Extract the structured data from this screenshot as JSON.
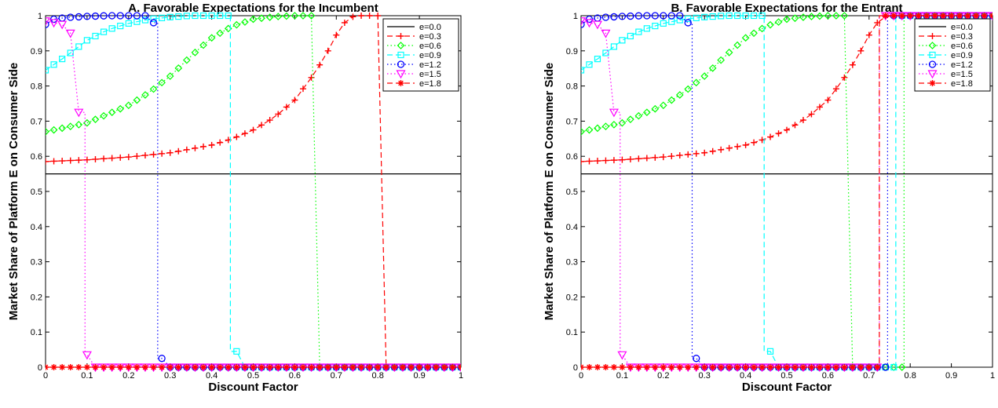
{
  "colors": {
    "e00": "#000000",
    "e03": "#ff0000",
    "e06": "#00ff00",
    "e09": "#00ffff",
    "e12": "#0000ff",
    "e15": "#ff00ff",
    "e18": "#ff0000"
  },
  "chart_data": [
    {
      "type": "line",
      "title": "A. Favorable Expectations for the Incumbent",
      "xlabel": "Discount Factor",
      "ylabel": "Market Share of Platform E on Consumer Side",
      "xlim": [
        0,
        1
      ],
      "ylim": [
        0,
        1
      ],
      "xticks": [
        "0",
        "0.1",
        "0.2",
        "0.3",
        "0.4",
        "0.5",
        "0.6",
        "0.7",
        "0.8",
        "0.9",
        "1"
      ],
      "yticks": [
        "0",
        "0.1",
        "0.2",
        "0.3",
        "0.4",
        "0.5",
        "0.6",
        "0.7",
        "0.8",
        "0.9",
        "1"
      ],
      "grid": false,
      "legend": "top-right",
      "x_step": 0.02,
      "series": [
        {
          "name": "e=0.0",
          "style": "solid",
          "marker": "none",
          "color_key": "e00",
          "constant": 0.55
        },
        {
          "name": "e=0.3",
          "style": "dashed",
          "marker": "plus",
          "color_key": "e03",
          "high": [
            [
              0,
              0.585
            ],
            [
              0.1,
              0.59
            ],
            [
              0.2,
              0.598
            ],
            [
              0.3,
              0.61
            ],
            [
              0.4,
              0.632
            ],
            [
              0.45,
              0.65
            ],
            [
              0.5,
              0.675
            ],
            [
              0.55,
              0.71
            ],
            [
              0.6,
              0.76
            ],
            [
              0.65,
              0.84
            ],
            [
              0.68,
              0.9
            ],
            [
              0.7,
              0.945
            ],
            [
              0.72,
              0.98
            ],
            [
              0.74,
              0.997
            ],
            [
              0.76,
              1.0
            ],
            [
              0.8,
              1.0
            ]
          ],
          "jump": 0.82,
          "low": 0.0
        },
        {
          "name": "e=0.6",
          "style": "dotted",
          "marker": "diamond",
          "color_key": "e06",
          "high": [
            [
              0,
              0.67
            ],
            [
              0.1,
              0.695
            ],
            [
              0.2,
              0.745
            ],
            [
              0.25,
              0.782
            ],
            [
              0.3,
              0.828
            ],
            [
              0.35,
              0.885
            ],
            [
              0.4,
              0.937
            ],
            [
              0.45,
              0.97
            ],
            [
              0.5,
              0.99
            ],
            [
              0.55,
              0.997
            ],
            [
              0.6,
              1.0
            ],
            [
              0.64,
              1.0
            ]
          ],
          "jump": 0.66,
          "low": 0.0
        },
        {
          "name": "e=0.9",
          "style": "dashed",
          "marker": "square",
          "color_key": "e09",
          "high": [
            [
              0,
              0.845
            ],
            [
              0.05,
              0.885
            ],
            [
              0.1,
              0.93
            ],
            [
              0.15,
              0.96
            ],
            [
              0.2,
              0.978
            ],
            [
              0.25,
              0.99
            ],
            [
              0.3,
              0.996
            ],
            [
              0.35,
              1.0
            ],
            [
              0.44,
              1.0
            ]
          ],
          "jump": 0.445,
          "low_points": [
            [
              0.46,
              0.045
            ],
            [
              0.48,
              0.0
            ]
          ],
          "low": 0.0
        },
        {
          "name": "e=1.2",
          "style": "dotted",
          "marker": "circle",
          "color_key": "e12",
          "high": [
            [
              0,
              0.975
            ],
            [
              0.02,
              0.99
            ],
            [
              0.05,
              0.995
            ],
            [
              0.1,
              0.998
            ],
            [
              0.15,
              1.0
            ],
            [
              0.24,
              1.0
            ],
            [
              0.26,
              0.98
            ]
          ],
          "jump": 0.27,
          "low_points": [
            [
              0.28,
              0.025
            ],
            [
              0.3,
              0.0
            ]
          ],
          "low": 0.0
        },
        {
          "name": "e=1.5",
          "style": "dotted",
          "marker": "triangle-down",
          "color_key": "e15",
          "high": [
            [
              0,
              0.985
            ],
            [
              0.02,
              0.98
            ],
            [
              0.04,
              0.975
            ],
            [
              0.06,
              0.95
            ],
            [
              0.08,
              0.725
            ]
          ],
          "jump": 0.095,
          "low_points": [
            [
              0.1,
              0.035
            ],
            [
              0.12,
              0.0
            ]
          ],
          "low": 0.0
        },
        {
          "name": "e=1.8",
          "style": "dashed",
          "marker": "star",
          "color_key": "e18",
          "high": [],
          "jump": null,
          "low": 0.0,
          "low_only": true
        }
      ]
    },
    {
      "type": "line",
      "title": "B. Favorable Expectations for the Entrant",
      "xlabel": "Discount Factor",
      "ylabel": "Market Share of Platform E on Consumer Side",
      "xlim": [
        0,
        1
      ],
      "ylim": [
        0,
        1
      ],
      "xticks": [
        "0",
        "0.1",
        "0.2",
        "0.3",
        "0.4",
        "0.5",
        "0.6",
        "0.7",
        "0.8",
        "0.9",
        "1"
      ],
      "yticks": [
        "0",
        "0.1",
        "0.2",
        "0.3",
        "0.4",
        "0.5",
        "0.6",
        "0.7",
        "0.8",
        "0.9",
        "1"
      ],
      "grid": false,
      "legend": "top-right",
      "x_step": 0.02,
      "series": [
        {
          "name": "e=0.0",
          "style": "solid",
          "marker": "none",
          "color_key": "e00",
          "constant": 0.55
        },
        {
          "name": "e=0.3",
          "style": "dashed",
          "marker": "plus",
          "color_key": "e03",
          "high": [
            [
              0,
              0.585
            ],
            [
              0.1,
              0.59
            ],
            [
              0.2,
              0.598
            ],
            [
              0.3,
              0.61
            ],
            [
              0.4,
              0.632
            ],
            [
              0.45,
              0.65
            ],
            [
              0.5,
              0.675
            ],
            [
              0.55,
              0.71
            ],
            [
              0.6,
              0.76
            ],
            [
              0.65,
              0.84
            ],
            [
              0.68,
              0.9
            ],
            [
              0.7,
              0.945
            ],
            [
              0.72,
              0.98
            ],
            [
              0.74,
              0.997
            ],
            [
              0.76,
              1.0
            ],
            [
              1.0,
              1.0
            ]
          ]
        },
        {
          "name": "e=0.6",
          "style": "dotted",
          "marker": "diamond",
          "color_key": "e06",
          "high": [
            [
              0,
              0.67
            ],
            [
              0.1,
              0.695
            ],
            [
              0.2,
              0.745
            ],
            [
              0.25,
              0.782
            ],
            [
              0.3,
              0.828
            ],
            [
              0.35,
              0.885
            ],
            [
              0.4,
              0.937
            ],
            [
              0.45,
              0.97
            ],
            [
              0.5,
              0.99
            ],
            [
              0.55,
              0.997
            ],
            [
              0.6,
              1.0
            ],
            [
              0.64,
              1.0
            ]
          ],
          "jump": 0.66,
          "low_until": 0.78,
          "rejump": 0.785
        },
        {
          "name": "e=0.9",
          "style": "dashed",
          "marker": "square",
          "color_key": "e09",
          "high": [
            [
              0,
              0.845
            ],
            [
              0.05,
              0.885
            ],
            [
              0.1,
              0.93
            ],
            [
              0.15,
              0.96
            ],
            [
              0.2,
              0.978
            ],
            [
              0.25,
              0.99
            ],
            [
              0.3,
              0.996
            ],
            [
              0.35,
              1.0
            ],
            [
              0.44,
              1.0
            ]
          ],
          "jump": 0.445,
          "low_points": [
            [
              0.46,
              0.045
            ],
            [
              0.48,
              0.0
            ]
          ],
          "low_until": 0.76,
          "rejump": 0.765
        },
        {
          "name": "e=1.2",
          "style": "dotted",
          "marker": "circle",
          "color_key": "e12",
          "high": [
            [
              0,
              0.975
            ],
            [
              0.02,
              0.99
            ],
            [
              0.05,
              0.995
            ],
            [
              0.1,
              0.998
            ],
            [
              0.15,
              1.0
            ],
            [
              0.24,
              1.0
            ],
            [
              0.26,
              0.98
            ]
          ],
          "jump": 0.27,
          "low_points": [
            [
              0.28,
              0.025
            ],
            [
              0.3,
              0.0
            ]
          ],
          "low_until": 0.74,
          "rejump": 0.745
        },
        {
          "name": "e=1.5",
          "style": "dotted",
          "marker": "triangle-down",
          "color_key": "e15",
          "high": [
            [
              0,
              0.985
            ],
            [
              0.02,
              0.98
            ],
            [
              0.04,
              0.975
            ],
            [
              0.06,
              0.95
            ],
            [
              0.08,
              0.725
            ]
          ],
          "jump": 0.095,
          "low_points": [
            [
              0.1,
              0.035
            ],
            [
              0.12,
              0.0
            ]
          ],
          "low_until": 0.72,
          "rejump": 0.725
        },
        {
          "name": "e=1.8",
          "style": "dashed",
          "marker": "star",
          "color_key": "e18",
          "high": [],
          "low_start": true,
          "low_until": 0.72,
          "rejump": 0.725
        }
      ]
    }
  ]
}
